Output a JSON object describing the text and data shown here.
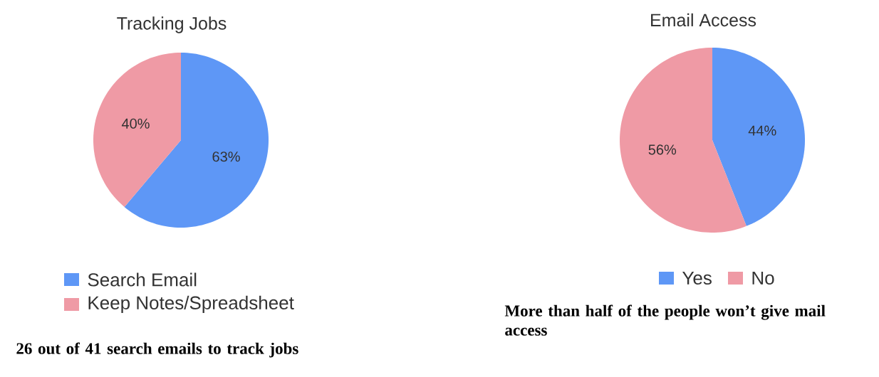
{
  "chart_data": [
    {
      "type": "pie",
      "title": "Tracking Jobs",
      "categories": [
        "Search Email",
        "Keep Notes/Spreadsheet"
      ],
      "values": [
        63,
        40
      ],
      "colors": [
        "#5e97f6",
        "#ef9aa5"
      ],
      "value_labels": [
        "63%",
        "40%"
      ],
      "legend": "bottom",
      "annotations": [
        "26 out of 41 search emails to track jobs"
      ]
    },
    {
      "type": "pie",
      "title": "Email Access",
      "categories": [
        "Yes",
        "No"
      ],
      "values": [
        44,
        56
      ],
      "colors": [
        "#5e97f6",
        "#ef9aa5"
      ],
      "value_labels": [
        "44%",
        "56%"
      ],
      "legend": "bottom",
      "annotations": [
        "More than half of the people won’t give mail access"
      ]
    }
  ]
}
